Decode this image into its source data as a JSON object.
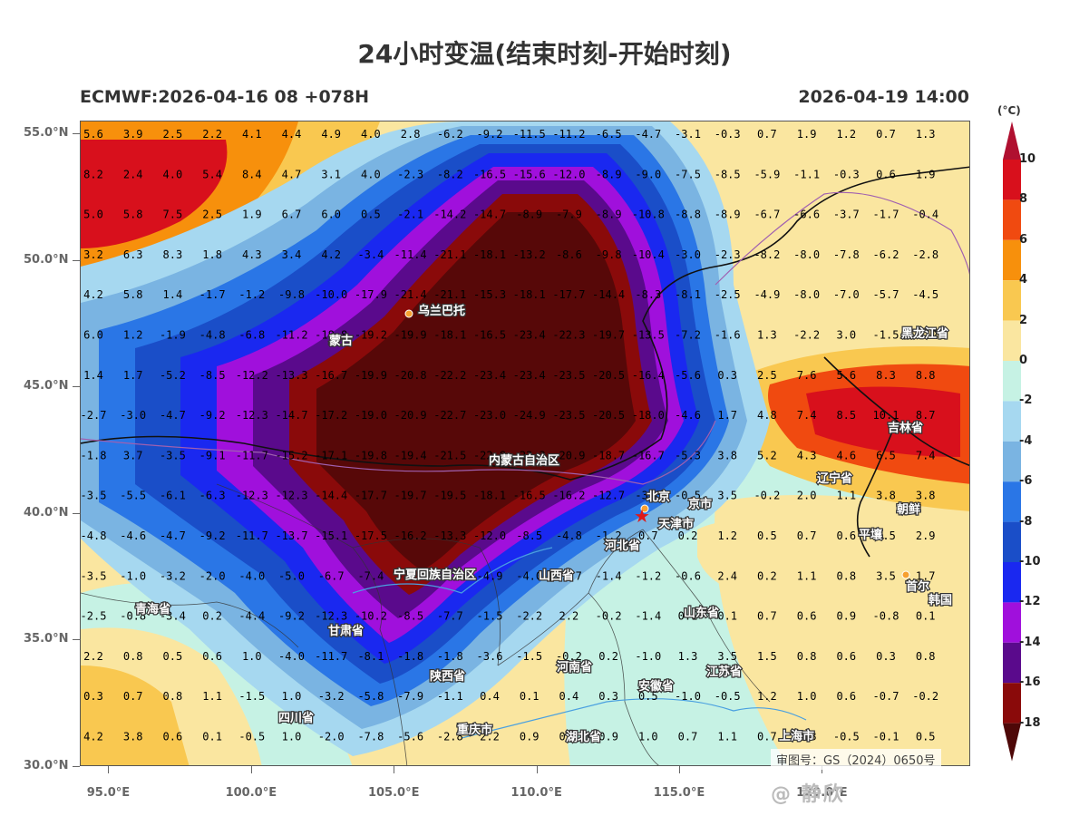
{
  "title": "24小时变温(结束时刻-开始时刻)",
  "subtitle_left": "ECMWF:2026-04-16 08 +078H",
  "subtitle_right": "2026-04-19 14:00",
  "colorbar": {
    "unit": "(°C)",
    "labels": [
      "10",
      "8",
      "6",
      "4",
      "2",
      "0",
      "-2",
      "-4",
      "-6",
      "-8",
      "-10",
      "-12",
      "-14",
      "-16",
      "-18"
    ],
    "colors": [
      "#b01030",
      "#d8101c",
      "#f04a10",
      "#f7900c",
      "#f9c850",
      "#fae6a0",
      "#c6f2e4",
      "#a6d8f0",
      "#7ab4e2",
      "#2a76e6",
      "#1a4ec8",
      "#1a28f0",
      "#a010dc",
      "#5a0a8c",
      "#8a0a0a",
      "#4e0808"
    ]
  },
  "axes": {
    "lat_labels": [
      "55.0°N",
      "50.0°N",
      "45.0°N",
      "40.0°N",
      "35.0°N",
      "30.0°N"
    ],
    "lon_labels": [
      "95.0°E",
      "100.0°E",
      "105.0°E",
      "110.0°E",
      "115.0°E",
      "120.0°E"
    ],
    "lat_values": [
      55,
      50,
      45,
      40,
      35,
      30
    ],
    "lon_values": [
      95,
      100,
      105,
      110,
      115,
      120
    ],
    "lat_range": [
      30,
      55.5
    ],
    "lon_range": [
      94,
      125.2
    ]
  },
  "grid_values": [
    [
      "5.6",
      "3.9",
      "2.5",
      "2.2",
      "4.1",
      "4.4",
      "4.9",
      "4.0",
      "2.8",
      "-6.2",
      "-9.2",
      "-11.5",
      "-11.2",
      "-6.5",
      "-4.7",
      "-3.1",
      "-0.3",
      "0.7",
      "1.9",
      "1.2",
      "0.7",
      "1.3"
    ],
    [
      "8.2",
      "2.4",
      "4.0",
      "5.4",
      "8.4",
      "4.7",
      "3.1",
      "4.0",
      "-2.3",
      "-8.2",
      "-16.5",
      "-15.6",
      "-12.0",
      "-8.9",
      "-9.0",
      "-7.5",
      "-8.5",
      "-5.9",
      "-1.1",
      "-0.3",
      "0.6",
      "1.9"
    ],
    [
      "5.0",
      "5.8",
      "7.5",
      "2.5",
      "1.9",
      "6.7",
      "6.0",
      "0.5",
      "-2.1",
      "-14.2",
      "-14.7",
      "-8.9",
      "-7.9",
      "-8.9",
      "-10.8",
      "-8.8",
      "-8.9",
      "-6.7",
      "-6.6",
      "-3.7",
      "-1.7",
      "-0.4"
    ],
    [
      "3.2",
      "6.3",
      "8.3",
      "1.8",
      "4.3",
      "3.4",
      "4.2",
      "-3.4",
      "-11.4",
      "-21.1",
      "-18.1",
      "-13.2",
      "-8.6",
      "-9.8",
      "-10.4",
      "-3.0",
      "-2.3",
      "-8.2",
      "-8.0",
      "-7.8",
      "-6.2",
      "-2.8"
    ],
    [
      "4.2",
      "5.8",
      "1.4",
      "-1.7",
      "-1.2",
      "-9.8",
      "-10.0",
      "-17.9",
      "-21.4",
      "-21.1",
      "-15.3",
      "-18.1",
      "-17.7",
      "-14.4",
      "-8.3",
      "-8.1",
      "-2.5",
      "-4.9",
      "-8.0",
      "-7.0",
      "-5.7",
      "-4.5"
    ],
    [
      "6.0",
      "1.2",
      "-1.9",
      "-4.8",
      "-6.8",
      "-11.2",
      "-18.8",
      "-19.2",
      "-19.9",
      "-18.1",
      "-16.5",
      "-23.4",
      "-22.3",
      "-19.7",
      "-13.5",
      "-7.2",
      "-1.6",
      "1.3",
      "-2.2",
      "3.0",
      "-1.5",
      "-3.7"
    ],
    [
      "1.4",
      "1.7",
      "-5.2",
      "-8.5",
      "-12.2",
      "-13.3",
      "-16.7",
      "-19.9",
      "-20.8",
      "-22.2",
      "-23.4",
      "-23.4",
      "-23.5",
      "-20.5",
      "-16.4",
      "-5.6",
      "0.3",
      "2.5",
      "7.6",
      "5.6",
      "8.3",
      "8.8"
    ],
    [
      "-2.7",
      "-3.0",
      "-4.7",
      "-9.2",
      "-12.3",
      "-14.7",
      "-17.2",
      "-19.0",
      "-20.9",
      "-22.7",
      "-23.0",
      "-24.9",
      "-23.5",
      "-20.5",
      "-18.0",
      "-4.6",
      "1.7",
      "4.8",
      "7.4",
      "8.5",
      "10.1",
      "8.7"
    ],
    [
      "-1.8",
      "3.7",
      "-3.5",
      "-9.1",
      "-11.7",
      "-15.2",
      "-17.1",
      "-19.8",
      "-19.4",
      "-21.5",
      "-22.8",
      "-22.3",
      "-20.9",
      "-18.7",
      "-16.7",
      "-5.3",
      "3.8",
      "5.2",
      "4.3",
      "4.6",
      "6.5",
      "7.4"
    ],
    [
      "-3.5",
      "-5.5",
      "-6.1",
      "-6.3",
      "-12.3",
      "-12.3",
      "-14.4",
      "-17.7",
      "-19.7",
      "-19.5",
      "-18.1",
      "-16.5",
      "-16.2",
      "-12.7",
      "-3.6",
      "-0.5",
      "3.5",
      "-0.2",
      "2.0",
      "1.1",
      "3.8",
      "3.8"
    ],
    [
      "-4.8",
      "-4.6",
      "-4.7",
      "-9.2",
      "-11.7",
      "-13.7",
      "-15.1",
      "-17.5",
      "-16.2",
      "-13.3",
      "-12.0",
      "-8.5",
      "-4.8",
      "-1.2",
      "0.7",
      "0.2",
      "1.2",
      "0.5",
      "0.7",
      "0.6",
      "3.5",
      "2.9"
    ],
    [
      "-3.5",
      "-1.0",
      "-3.2",
      "-2.0",
      "-4.0",
      "-5.0",
      "-6.7",
      "-7.4",
      "-7.6",
      "-9.3",
      "-4.9",
      "-4.0",
      "-2.7",
      "-1.4",
      "-1.2",
      "-0.6",
      "2.4",
      "0.2",
      "1.1",
      "0.8",
      "3.5",
      "1.7"
    ],
    [
      "-2.5",
      "-0.8",
      "-3.4",
      "0.2",
      "-4.4",
      "-9.2",
      "-12.3",
      "-10.2",
      "-8.5",
      "-7.7",
      "-1.5",
      "-2.2",
      "2.2",
      "-0.2",
      "-1.4",
      "0.1",
      "0.1",
      "0.7",
      "0.6",
      "0.9",
      "-0.8",
      "0.1"
    ],
    [
      "2.2",
      "0.8",
      "0.5",
      "0.6",
      "1.0",
      "-4.0",
      "-11.7",
      "-8.1",
      "-1.8",
      "-1.8",
      "-3.6",
      "-1.5",
      "-0.2",
      "0.2",
      "-1.0",
      "1.3",
      "3.5",
      "1.5",
      "0.8",
      "0.6",
      "0.3",
      "0.8"
    ],
    [
      "0.3",
      "0.7",
      "0.8",
      "1.1",
      "-1.5",
      "1.0",
      "-3.2",
      "-5.8",
      "-7.9",
      "-1.1",
      "0.4",
      "0.1",
      "0.4",
      "0.3",
      "0.5",
      "-1.0",
      "-0.5",
      "1.2",
      "1.0",
      "0.6",
      "-0.7",
      "-0.2"
    ],
    [
      "4.2",
      "3.8",
      "0.6",
      "0.1",
      "-0.5",
      "1.0",
      "-2.0",
      "-7.8",
      "-5.6",
      "-2.8",
      "2.2",
      "0.9",
      "0.2",
      "0.9",
      "1.0",
      "0.7",
      "1.1",
      "0.7",
      "0.8",
      "-0.5",
      "-0.1",
      "0.5"
    ]
  ],
  "place_labels": [
    "乌兰巴托",
    "蒙古",
    "黑龙江省",
    "吉林省",
    "辽宁省",
    "内蒙古自治区",
    "北京",
    "天津市",
    "京市",
    "朝鲜",
    "平壤",
    "首尔",
    "韩国",
    "河北省",
    "山西省",
    "宁夏回族自治区",
    "青海省",
    "甘肃省",
    "山东省",
    "陕西省",
    "河南省",
    "安徽省",
    "江苏省",
    "四川省",
    "重庆市",
    "湖北省",
    "上海市"
  ],
  "watermark": "审图号：GS（2024）0650号",
  "weibo_mark": "@ 静欣"
}
